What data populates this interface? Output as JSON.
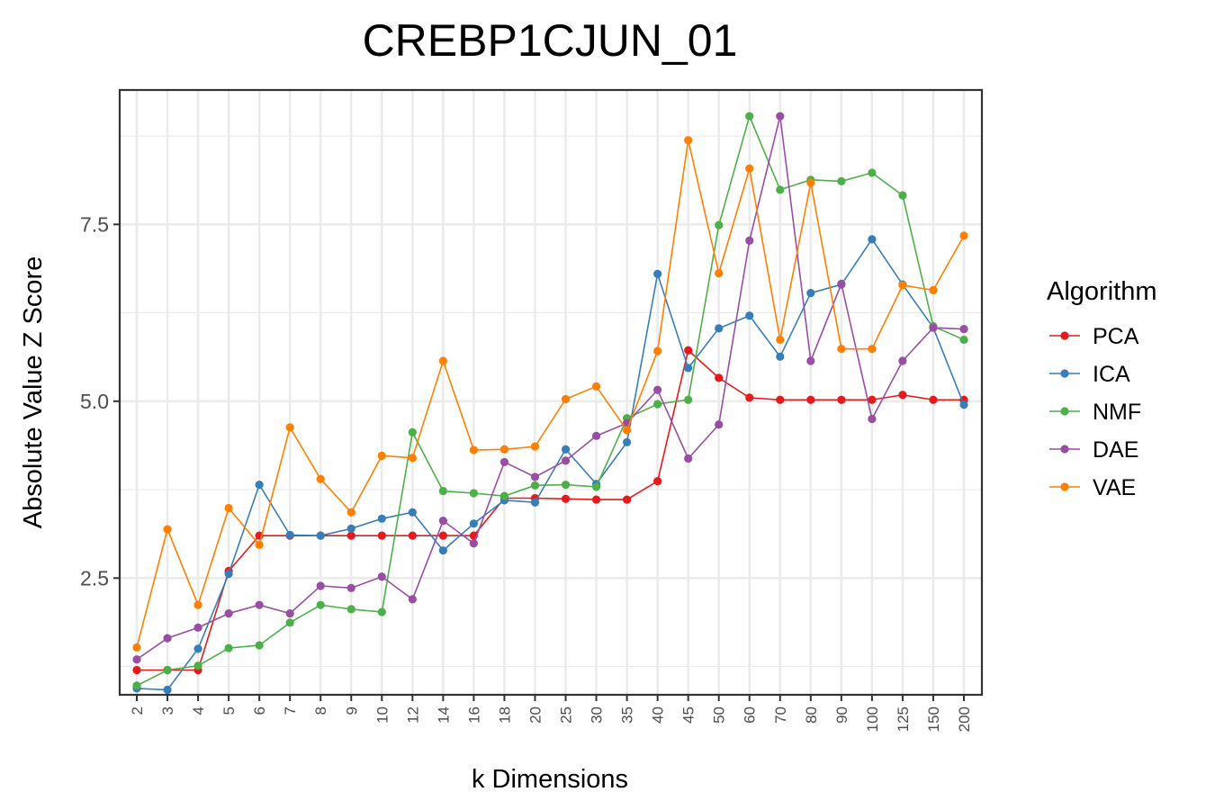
{
  "chart_data": {
    "type": "line",
    "title": "CREBP1CJUN_01",
    "xlabel": "k Dimensions",
    "ylabel": "Absolute Value Z Score",
    "categories": [
      "2",
      "3",
      "4",
      "5",
      "6",
      "7",
      "8",
      "9",
      "10",
      "12",
      "14",
      "16",
      "18",
      "20",
      "25",
      "30",
      "35",
      "40",
      "45",
      "50",
      "60",
      "70",
      "80",
      "90",
      "100",
      "125",
      "150",
      "200"
    ],
    "yticks": [
      2.5,
      5.0,
      7.5
    ],
    "ytick_labels": [
      "2.5",
      "5.0",
      "7.5"
    ],
    "ylim": [
      0.85,
      9.4
    ],
    "grid": true,
    "legend_title": "Algorithm",
    "legend_position": "right",
    "series": [
      {
        "name": "PCA",
        "color": "#E41A1C",
        "values": [
          1.2,
          1.2,
          1.2,
          2.6,
          3.1,
          3.1,
          3.1,
          3.1,
          3.1,
          3.1,
          3.1,
          3.1,
          3.63,
          3.63,
          3.62,
          3.61,
          3.61,
          3.87,
          5.72,
          5.33,
          5.05,
          5.02,
          5.02,
          5.02,
          5.02,
          5.09,
          5.02,
          5.02
        ]
      },
      {
        "name": "ICA",
        "color": "#377EB8",
        "values": [
          0.94,
          0.92,
          1.5,
          2.56,
          3.82,
          3.11,
          3.1,
          3.2,
          3.34,
          3.43,
          2.89,
          3.27,
          3.6,
          3.57,
          4.32,
          3.83,
          4.42,
          6.8,
          5.47,
          6.03,
          6.21,
          5.63,
          6.53,
          6.65,
          7.29,
          6.65,
          6.04,
          4.95
        ]
      },
      {
        "name": "NMF",
        "color": "#4DAF4A",
        "values": [
          0.98,
          1.2,
          1.26,
          1.51,
          1.55,
          1.87,
          2.12,
          2.06,
          2.02,
          4.56,
          3.73,
          3.7,
          3.66,
          3.81,
          3.82,
          3.79,
          4.76,
          4.96,
          5.02,
          7.49,
          9.03,
          7.99,
          8.13,
          8.11,
          8.23,
          7.91,
          6.06,
          5.87
        ]
      },
      {
        "name": "DAE",
        "color": "#984EA3",
        "values": [
          1.35,
          1.65,
          1.8,
          2.0,
          2.12,
          2.0,
          2.39,
          2.36,
          2.52,
          2.2,
          3.31,
          2.99,
          4.14,
          3.93,
          4.16,
          4.51,
          4.69,
          5.16,
          4.19,
          4.67,
          7.27,
          9.03,
          5.57,
          6.66,
          4.75,
          5.57,
          6.04,
          6.02
        ]
      },
      {
        "name": "VAE",
        "color": "#FF7F00",
        "values": [
          1.52,
          3.19,
          2.12,
          3.49,
          2.97,
          4.63,
          3.9,
          3.43,
          4.23,
          4.2,
          5.57,
          4.31,
          4.32,
          4.36,
          5.03,
          5.21,
          4.59,
          5.71,
          8.69,
          6.81,
          8.29,
          5.87,
          8.09,
          5.74,
          5.74,
          6.64,
          6.57,
          7.34
        ]
      }
    ]
  }
}
